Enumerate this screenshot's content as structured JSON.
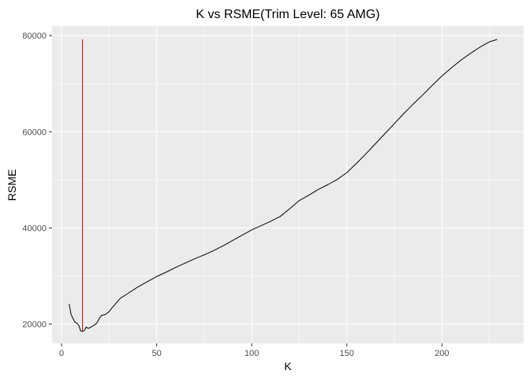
{
  "chart_data": {
    "type": "line",
    "title": "K vs RSME(Trim Level: 65 AMG)",
    "xlabel": "K",
    "ylabel": "RSME",
    "xlim": [
      -5,
      243
    ],
    "ylim": [
      16000,
      82000
    ],
    "x_ticks": [
      0,
      50,
      100,
      150,
      200
    ],
    "y_ticks": [
      20000,
      40000,
      60000,
      80000
    ],
    "x_tick_labels": [
      "0",
      "50",
      "100",
      "150",
      "200"
    ],
    "y_tick_labels": [
      "20000",
      "40000",
      "60000",
      "80000"
    ],
    "grid": true,
    "panel_background": "#ebebeb",
    "grid_color": "#ffffff",
    "series": [
      {
        "color": "#000000",
        "points": [
          [
            4,
            24200
          ],
          [
            5,
            22000
          ],
          [
            6,
            21200
          ],
          [
            7,
            20400
          ],
          [
            8,
            20200
          ],
          [
            9,
            19800
          ],
          [
            10,
            18600
          ],
          [
            11,
            18500
          ],
          [
            12,
            18700
          ],
          [
            13,
            19400
          ],
          [
            14,
            19100
          ],
          [
            16,
            19500
          ],
          [
            18,
            20000
          ],
          [
            19,
            20500
          ],
          [
            20,
            21300
          ],
          [
            21,
            21800
          ],
          [
            23,
            22000
          ],
          [
            25,
            22600
          ],
          [
            27,
            23600
          ],
          [
            29,
            24500
          ],
          [
            31,
            25400
          ],
          [
            35,
            26400
          ],
          [
            40,
            27700
          ],
          [
            45,
            28800
          ],
          [
            50,
            29900
          ],
          [
            55,
            30800
          ],
          [
            60,
            31800
          ],
          [
            65,
            32700
          ],
          [
            70,
            33600
          ],
          [
            75,
            34400
          ],
          [
            80,
            35300
          ],
          [
            85,
            36300
          ],
          [
            90,
            37400
          ],
          [
            95,
            38500
          ],
          [
            100,
            39600
          ],
          [
            105,
            40500
          ],
          [
            110,
            41400
          ],
          [
            115,
            42400
          ],
          [
            120,
            44000
          ],
          [
            125,
            45700
          ],
          [
            130,
            46800
          ],
          [
            135,
            48000
          ],
          [
            140,
            49000
          ],
          [
            145,
            50100
          ],
          [
            150,
            51500
          ],
          [
            155,
            53400
          ],
          [
            160,
            55400
          ],
          [
            165,
            57500
          ],
          [
            170,
            59600
          ],
          [
            175,
            61700
          ],
          [
            180,
            63800
          ],
          [
            185,
            65800
          ],
          [
            190,
            67700
          ],
          [
            195,
            69700
          ],
          [
            200,
            71600
          ],
          [
            205,
            73300
          ],
          [
            210,
            74900
          ],
          [
            215,
            76300
          ],
          [
            220,
            77600
          ],
          [
            225,
            78700
          ],
          [
            229,
            79200
          ]
        ]
      }
    ],
    "reference_line": {
      "color": "#cc0000",
      "x": 11,
      "y_from": 18500,
      "y_to": 79200
    }
  }
}
